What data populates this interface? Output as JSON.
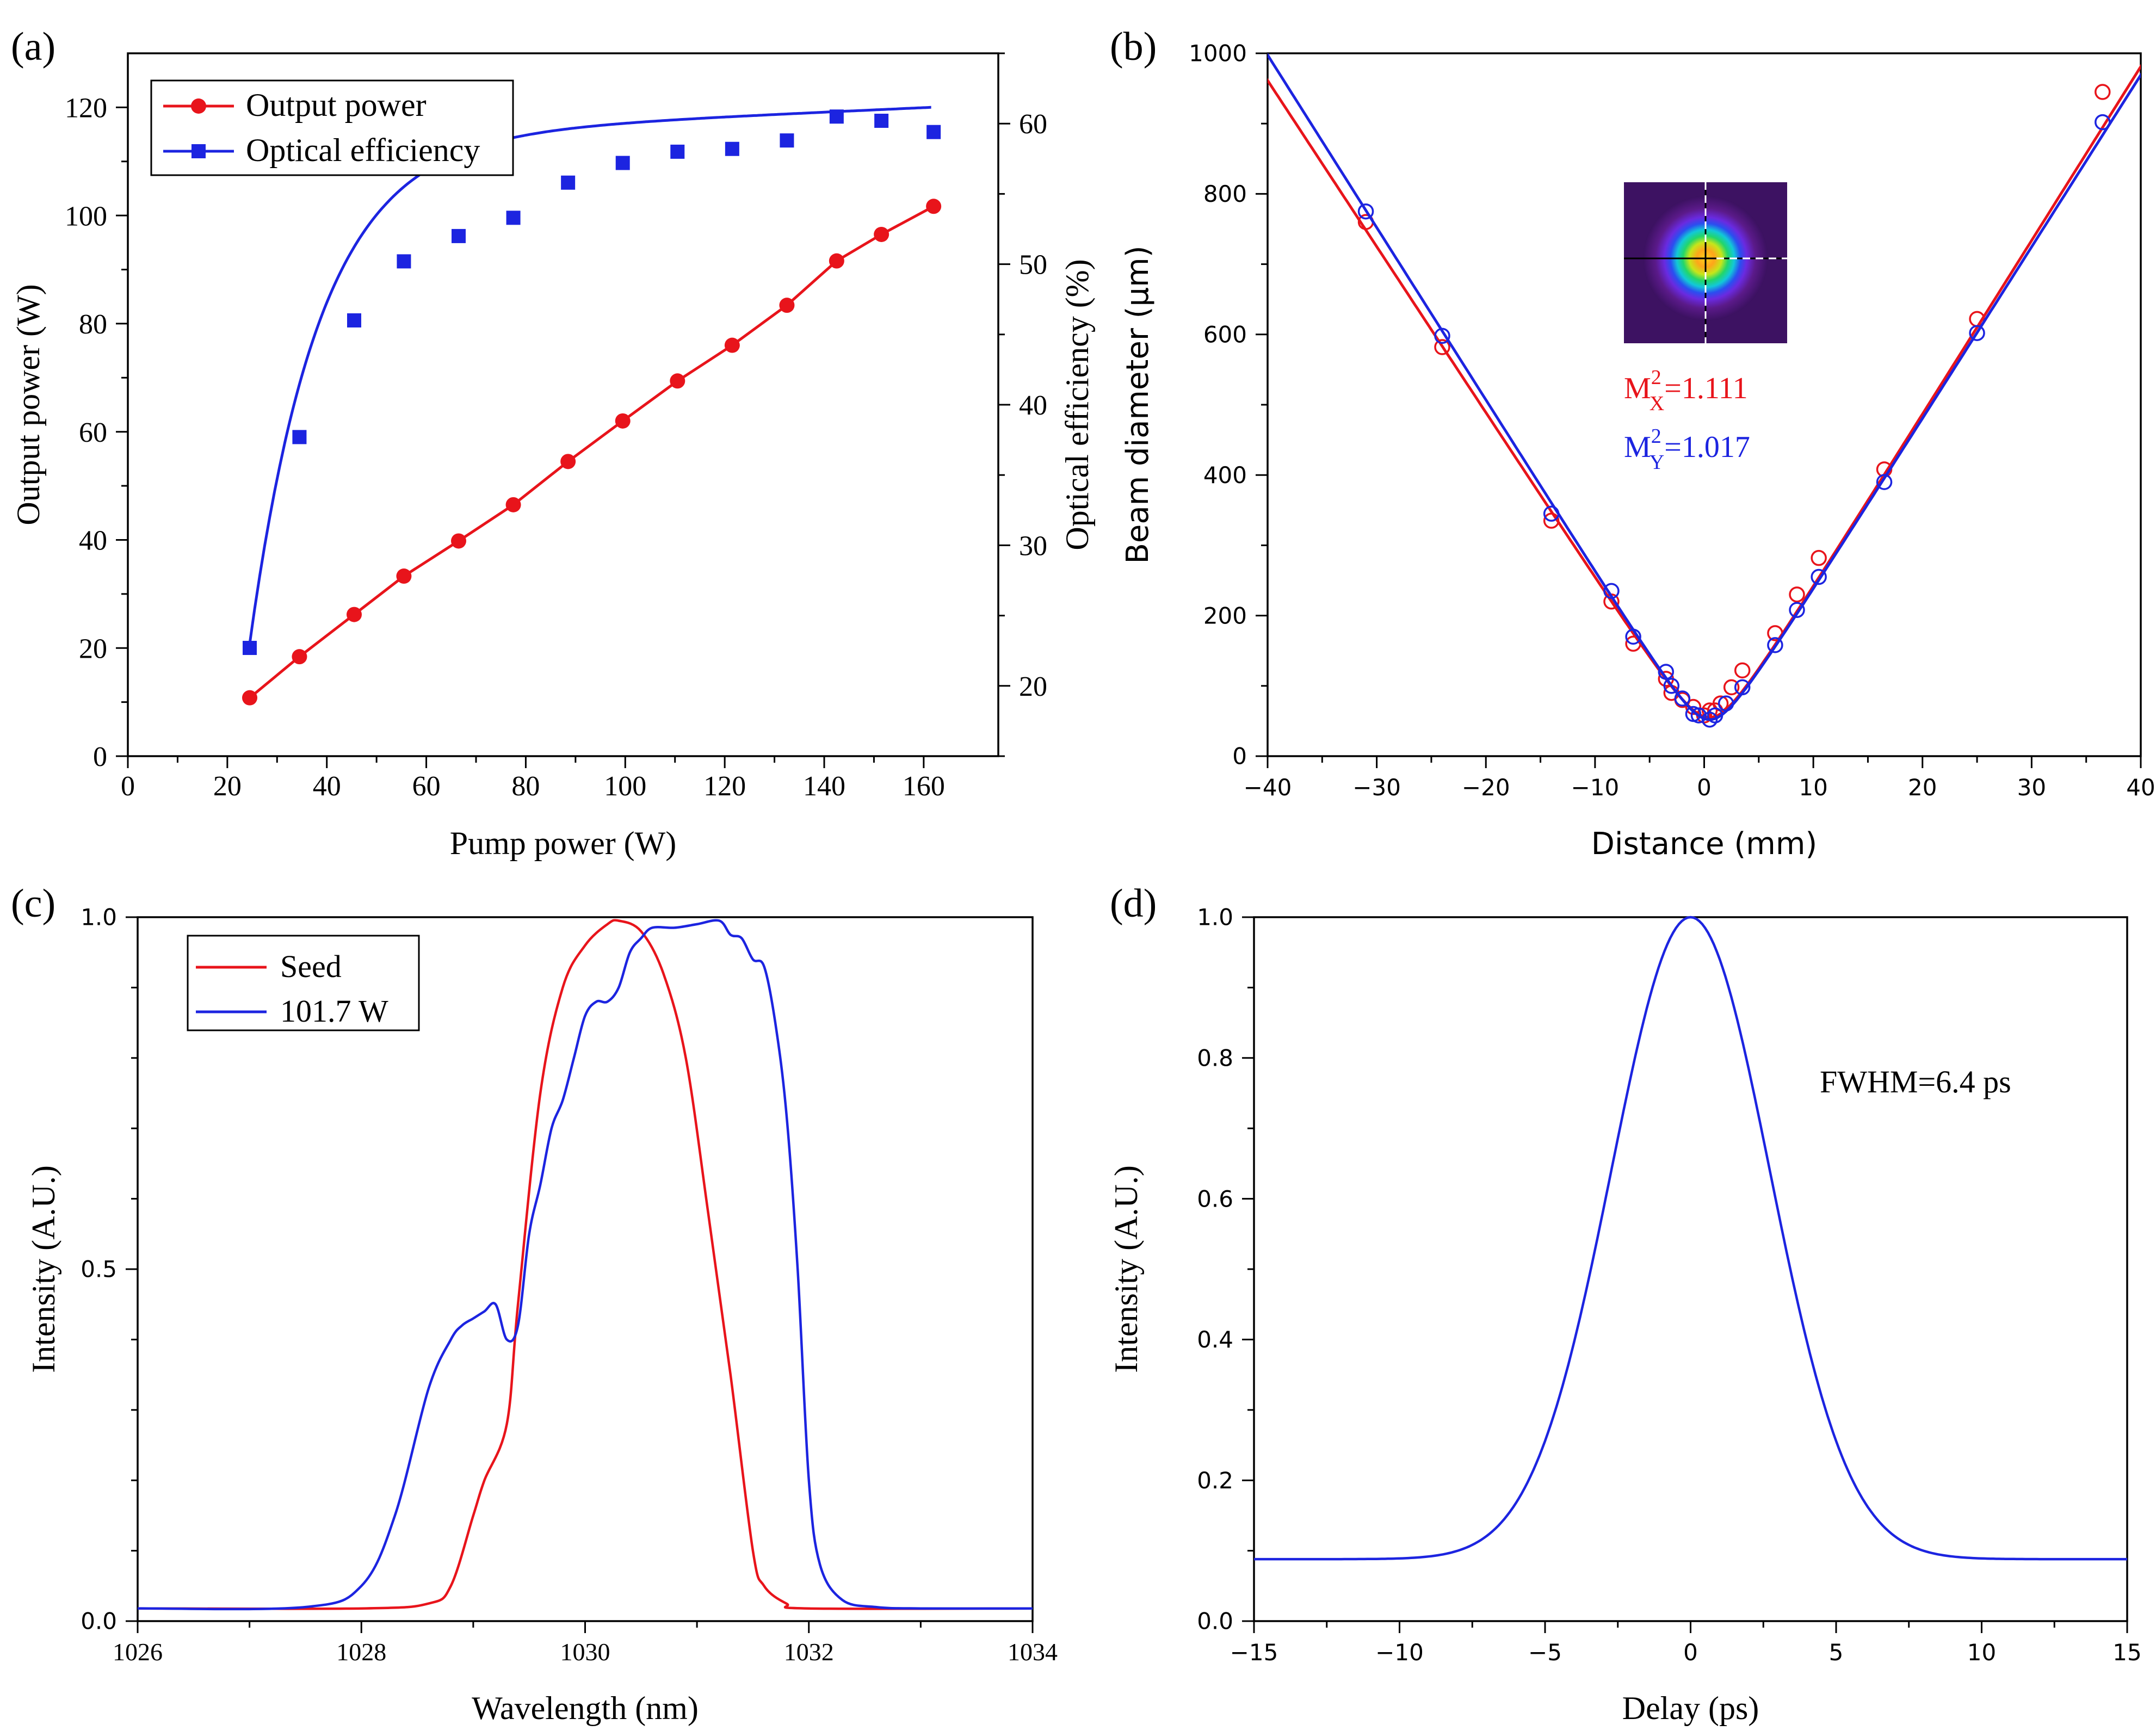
{
  "panel_labels": [
    "(a)",
    "(b)",
    "(c)",
    "(d)"
  ],
  "chart_data": [
    {
      "id": "a",
      "type": "line",
      "xlabel": "Pump power (W)",
      "ylabel": "Output power (W)",
      "y2label": "Optical efficiency (%)",
      "xlim": [
        0,
        175
      ],
      "ylim": [
        0,
        130
      ],
      "y2lim": [
        15,
        65
      ],
      "xticks": [
        0,
        20,
        40,
        60,
        80,
        100,
        120,
        140,
        160
      ],
      "yticks": [
        0,
        20,
        40,
        60,
        80,
        100,
        120
      ],
      "y2ticks": [
        20,
        30,
        40,
        50,
        60
      ],
      "legend": "top-left",
      "colors": {
        "output": "#e8141b",
        "efficiency": "#1c24e0"
      },
      "series": [
        {
          "name": "Output power",
          "axis": "left",
          "marker": "circle",
          "x": [
            24.5,
            34.5,
            45.5,
            55.5,
            66.5,
            77.5,
            88.5,
            99.5,
            110.5,
            121.5,
            132.5,
            142.5,
            151.5,
            162.0
          ],
          "values": [
            10.8,
            18.4,
            26.2,
            33.3,
            39.8,
            46.5,
            54.5,
            62.0,
            69.4,
            76.0,
            83.4,
            91.6,
            96.5,
            101.7
          ]
        },
        {
          "name": "Optical efficiency",
          "axis": "right",
          "marker": "square",
          "x": [
            24.5,
            34.5,
            45.5,
            55.5,
            66.5,
            77.5,
            88.5,
            99.5,
            110.5,
            121.5,
            132.5,
            142.5,
            151.5,
            162.0
          ],
          "values": [
            22.7,
            37.7,
            46.0,
            50.2,
            52.0,
            53.3,
            55.8,
            57.2,
            58.0,
            58.2,
            58.8,
            60.5,
            60.2,
            59.4
          ]
        }
      ]
    },
    {
      "id": "b",
      "type": "scatter",
      "xlabel": "Distance (mm)",
      "ylabel": "Beam diameter (μm)",
      "xlim": [
        -40,
        40
      ],
      "ylim": [
        0,
        1000
      ],
      "xticks": [
        -40,
        -30,
        -20,
        -10,
        0,
        10,
        20,
        30,
        40
      ],
      "yticks": [
        0,
        200,
        400,
        600,
        800,
        1000
      ],
      "colors": {
        "x": "#e8141b",
        "y": "#1c24e0"
      },
      "annotations": [
        {
          "prefix": "M",
          "sup": "2",
          "sub": "X",
          "value": "=1.111",
          "color": "#e8141b"
        },
        {
          "prefix": "M",
          "sup": "2",
          "sub": "Y",
          "value": "=1.017",
          "color": "#1c24e0"
        }
      ],
      "inset": "beam profile image",
      "series": [
        {
          "axis": "x",
          "x": [
            -31,
            -24,
            -14,
            -8.5,
            -6.5,
            -3.5,
            -3,
            -2,
            -1,
            0,
            0.5,
            1,
            1.5,
            2.5,
            3.5,
            6.5,
            8.5,
            10.5,
            16.5,
            25,
            36.5
          ],
          "values": [
            760,
            582,
            335,
            220,
            160,
            110,
            90,
            80,
            70,
            58,
            65,
            65,
            75,
            98,
            122,
            175,
            230,
            282,
            408,
            622,
            945
          ],
          "fit": {
            "x0": 0.5,
            "w0": 55,
            "slope_left": 23.7,
            "slope_right": 24.8
          }
        },
        {
          "axis": "y",
          "x": [
            -31,
            -24,
            -14,
            -8.5,
            -6.5,
            -3.5,
            -3,
            -2,
            -1,
            -0.5,
            0.5,
            1,
            2,
            3.5,
            6.5,
            8.5,
            10.5,
            16.5,
            25,
            36.5
          ],
          "values": [
            775,
            598,
            345,
            235,
            170,
            120,
            100,
            82,
            60,
            58,
            52,
            58,
            75,
            98,
            158,
            208,
            255,
            390,
            602,
            902
          ],
          "fit": {
            "x0": 0.5,
            "w0": 52,
            "slope_left": 24.6,
            "slope_right": 24.5
          }
        }
      ]
    },
    {
      "id": "c",
      "type": "line",
      "xlabel": "Wavelength (nm)",
      "ylabel": "Intensity (A.U.)",
      "xlim": [
        1026,
        1034
      ],
      "ylim": [
        0,
        1.0
      ],
      "xticks": [
        1026,
        1028,
        1030,
        1032,
        1034
      ],
      "yticks": [
        0,
        0.5,
        1.0
      ],
      "yticklabels": [
        "0.0",
        "0.5",
        "1.0"
      ],
      "legend": "top-left",
      "colors": {
        "seed": "#e8141b",
        "amplified": "#1c24e0"
      },
      "series": [
        {
          "name": "Seed",
          "x": [
            1026,
            1028.0,
            1028.6,
            1028.8,
            1029.0,
            1029.1,
            1029.3,
            1029.4,
            1029.6,
            1029.8,
            1030.0,
            1030.2,
            1030.3,
            1030.5,
            1030.7,
            1030.9,
            1031.1,
            1031.3,
            1031.5,
            1031.6,
            1031.8,
            1032.0,
            1034
          ],
          "values": [
            0.018,
            0.018,
            0.025,
            0.05,
            0.15,
            0.2,
            0.28,
            0.45,
            0.75,
            0.9,
            0.96,
            0.99,
            0.995,
            0.98,
            0.92,
            0.8,
            0.58,
            0.35,
            0.1,
            0.05,
            0.025,
            0.018,
            0.018
          ]
        },
        {
          "name": "101.7 W",
          "x": [
            1026,
            1027.5,
            1028.0,
            1028.3,
            1028.6,
            1028.8,
            1028.9,
            1029.0,
            1029.1,
            1029.2,
            1029.3,
            1029.4,
            1029.5,
            1029.6,
            1029.7,
            1029.8,
            1029.9,
            1030.0,
            1030.1,
            1030.2,
            1030.3,
            1030.4,
            1030.5,
            1030.6,
            1030.8,
            1031.0,
            1031.2,
            1031.3,
            1031.4,
            1031.5,
            1031.6,
            1031.7,
            1031.8,
            1031.9,
            1032.0,
            1032.1,
            1032.3,
            1032.6,
            1033.0,
            1034
          ],
          "values": [
            0.018,
            0.02,
            0.05,
            0.15,
            0.33,
            0.4,
            0.42,
            0.43,
            0.44,
            0.45,
            0.4,
            0.42,
            0.55,
            0.62,
            0.7,
            0.74,
            0.8,
            0.86,
            0.88,
            0.88,
            0.9,
            0.95,
            0.97,
            0.985,
            0.985,
            0.99,
            0.995,
            0.975,
            0.97,
            0.94,
            0.93,
            0.85,
            0.72,
            0.5,
            0.2,
            0.08,
            0.03,
            0.02,
            0.018,
            0.018
          ]
        }
      ]
    },
    {
      "id": "d",
      "type": "line",
      "xlabel": "Delay (ps)",
      "ylabel": "Intensity (A.U.)",
      "xlim": [
        -15,
        15
      ],
      "ylim": [
        0,
        1.0
      ],
      "xticks": [
        -15,
        -10,
        -5,
        0,
        5,
        10,
        15
      ],
      "yticks": [
        0,
        0.2,
        0.4,
        0.6,
        0.8,
        1.0
      ],
      "yticklabels": [
        "0.0",
        "0.2",
        "0.4",
        "0.6",
        "0.8",
        "1.0"
      ],
      "annotation": "FWHM=6.4 ps",
      "colors": {
        "trace": "#1c24e0"
      },
      "series": [
        {
          "baseline": 0.088,
          "peak": 1.0,
          "center": 0,
          "fwhm": 6.4
        }
      ]
    }
  ]
}
